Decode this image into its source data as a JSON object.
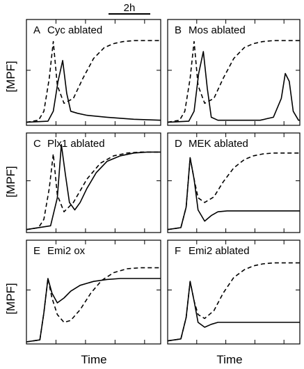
{
  "figure": {
    "scale_bar_label": "2h",
    "ylabel": "[MPF]",
    "xlabel": "Time"
  },
  "chart_data": [
    {
      "type": "line",
      "title": "Cyc ablated",
      "panel_letter": "A",
      "xlabel": "",
      "ylabel": "",
      "xlim": [
        0,
        10
      ],
      "ylim": [
        0,
        1
      ],
      "grid": false,
      "series": [
        {
          "style": "dashed",
          "x": [
            0,
            0.9,
            1.3,
            1.7,
            2.0,
            2.3,
            2.8,
            3.5,
            4.2,
            5.0,
            5.8,
            6.5,
            7.2,
            8.0,
            9.0,
            10
          ],
          "y": [
            0.01,
            0.03,
            0.12,
            0.45,
            0.82,
            0.38,
            0.2,
            0.25,
            0.45,
            0.65,
            0.76,
            0.8,
            0.82,
            0.83,
            0.83,
            0.83
          ]
        },
        {
          "style": "solid",
          "x": [
            0,
            1.6,
            2.0,
            2.35,
            2.7,
            3.0,
            3.3,
            3.8,
            4.5,
            6.0,
            8.0,
            10
          ],
          "y": [
            0.01,
            0.02,
            0.12,
            0.42,
            0.63,
            0.3,
            0.12,
            0.1,
            0.08,
            0.06,
            0.04,
            0.03
          ]
        }
      ]
    },
    {
      "type": "line",
      "title": "Mos ablated",
      "panel_letter": "B",
      "xlabel": "",
      "ylabel": "",
      "xlim": [
        0,
        10
      ],
      "ylim": [
        0,
        1
      ],
      "grid": false,
      "series": [
        {
          "style": "dashed",
          "x": [
            0,
            0.9,
            1.3,
            1.7,
            2.0,
            2.3,
            2.8,
            3.5,
            4.2,
            5.0,
            5.8,
            6.5,
            7.2,
            8.0,
            9.0,
            10
          ],
          "y": [
            0.01,
            0.03,
            0.12,
            0.45,
            0.82,
            0.38,
            0.2,
            0.25,
            0.45,
            0.65,
            0.76,
            0.8,
            0.82,
            0.83,
            0.83,
            0.83
          ]
        },
        {
          "style": "solid",
          "x": [
            0,
            1.6,
            2.0,
            2.35,
            2.7,
            3.0,
            3.3,
            3.8,
            5.0,
            7.0,
            8.0,
            8.6,
            8.9,
            9.2,
            9.5,
            9.9,
            10
          ],
          "y": [
            0.01,
            0.02,
            0.12,
            0.5,
            0.72,
            0.35,
            0.06,
            0.03,
            0.03,
            0.03,
            0.06,
            0.25,
            0.5,
            0.42,
            0.12,
            0.03,
            0.03
          ]
        }
      ]
    },
    {
      "type": "line",
      "title": "Plx1 ablated",
      "panel_letter": "C",
      "xlabel": "",
      "ylabel": "",
      "xlim": [
        0,
        10
      ],
      "ylim": [
        0,
        1
      ],
      "grid": false,
      "series": [
        {
          "style": "dashed",
          "x": [
            0,
            0.9,
            1.3,
            1.7,
            2.0,
            2.3,
            2.8,
            3.5,
            4.5,
            5.5,
            6.5,
            7.5,
            8.5,
            10
          ],
          "y": [
            0.01,
            0.03,
            0.12,
            0.45,
            0.82,
            0.38,
            0.2,
            0.3,
            0.55,
            0.72,
            0.8,
            0.83,
            0.84,
            0.84
          ]
        },
        {
          "style": "solid",
          "x": [
            0,
            1.8,
            2.3,
            2.6,
            2.9,
            3.2,
            3.6,
            4.0,
            4.5,
            5.2,
            6.0,
            7.0,
            8.0,
            9.0,
            10
          ],
          "y": [
            0.01,
            0.05,
            0.35,
            0.92,
            0.6,
            0.3,
            0.22,
            0.3,
            0.45,
            0.62,
            0.74,
            0.8,
            0.83,
            0.84,
            0.84
          ]
        }
      ]
    },
    {
      "type": "line",
      "title": "MEK ablated",
      "panel_letter": "D",
      "xlabel": "",
      "ylabel": "",
      "xlim": [
        0,
        10
      ],
      "ylim": [
        0,
        1
      ],
      "grid": false,
      "series": [
        {
          "style": "dashed",
          "x": [
            0,
            1.0,
            1.4,
            1.7,
            2.0,
            2.3,
            2.8,
            3.5,
            4.2,
            5.0,
            5.8,
            6.5,
            7.2,
            8.0,
            9.0,
            10
          ],
          "y": [
            0.01,
            0.03,
            0.25,
            0.78,
            0.55,
            0.35,
            0.3,
            0.36,
            0.52,
            0.67,
            0.76,
            0.8,
            0.82,
            0.83,
            0.83,
            0.83
          ]
        },
        {
          "style": "solid",
          "x": [
            0,
            1.0,
            1.4,
            1.7,
            2.0,
            2.3,
            2.8,
            3.3,
            3.8,
            4.5,
            5.5,
            7.0,
            10
          ],
          "y": [
            0.01,
            0.03,
            0.25,
            0.78,
            0.55,
            0.22,
            0.1,
            0.16,
            0.2,
            0.21,
            0.21,
            0.21,
            0.21
          ]
        }
      ]
    },
    {
      "type": "line",
      "title": "Emi2 ox",
      "panel_letter": "E",
      "xlabel": "",
      "ylabel": "",
      "xlim": [
        0,
        10
      ],
      "ylim": [
        0,
        1
      ],
      "grid": false,
      "series": [
        {
          "style": "dashed",
          "x": [
            0,
            1.0,
            1.3,
            1.6,
            1.9,
            2.3,
            2.8,
            3.3,
            4.0,
            4.8,
            5.6,
            6.5,
            7.5,
            8.5,
            10
          ],
          "y": [
            0.0,
            0.02,
            0.3,
            0.65,
            0.45,
            0.28,
            0.2,
            0.22,
            0.33,
            0.5,
            0.63,
            0.71,
            0.75,
            0.76,
            0.76
          ]
        },
        {
          "style": "solid",
          "x": [
            0,
            1.0,
            1.3,
            1.6,
            1.9,
            2.3,
            2.8,
            3.3,
            4.0,
            5.0,
            6.0,
            7.0,
            8.0,
            10
          ],
          "y": [
            0.0,
            0.02,
            0.3,
            0.65,
            0.5,
            0.4,
            0.45,
            0.52,
            0.58,
            0.62,
            0.64,
            0.65,
            0.65,
            0.65
          ]
        }
      ]
    },
    {
      "type": "line",
      "title": "Emi2 ablated",
      "panel_letter": "F",
      "xlabel": "",
      "ylabel": "",
      "xlim": [
        0,
        10
      ],
      "ylim": [
        0,
        1
      ],
      "grid": false,
      "series": [
        {
          "style": "dashed",
          "x": [
            0,
            1.0,
            1.4,
            1.7,
            2.0,
            2.3,
            2.8,
            3.5,
            4.2,
            5.0,
            5.8,
            6.5,
            7.2,
            8.0,
            9.0,
            10
          ],
          "y": [
            0.01,
            0.03,
            0.25,
            0.62,
            0.42,
            0.28,
            0.24,
            0.32,
            0.5,
            0.66,
            0.74,
            0.78,
            0.8,
            0.81,
            0.81,
            0.81
          ]
        },
        {
          "style": "solid",
          "x": [
            0,
            1.0,
            1.4,
            1.7,
            2.0,
            2.3,
            2.8,
            3.3,
            3.8,
            4.5,
            5.5,
            7.0,
            10
          ],
          "y": [
            0.01,
            0.03,
            0.25,
            0.62,
            0.42,
            0.2,
            0.15,
            0.18,
            0.2,
            0.2,
            0.2,
            0.2,
            0.2
          ]
        }
      ]
    }
  ]
}
